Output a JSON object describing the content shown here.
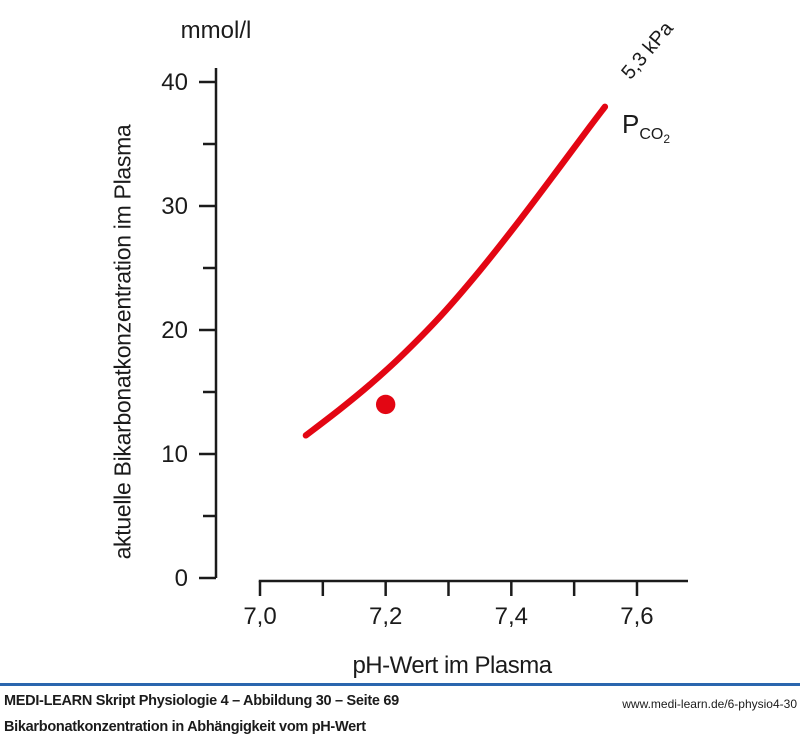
{
  "figure": {
    "unit_label": "mmol/l",
    "y_axis_label": "aktuelle Bikarbonatkonzentration im Plasma",
    "x_axis_label": "pH-Wert im Plasma",
    "isobar_label": "5,3 kPa",
    "pco2": {
      "base": "P",
      "sub": "CO",
      "subsub": "2"
    }
  },
  "chart_data": {
    "type": "line",
    "title": "",
    "xlabel": "pH-Wert im Plasma",
    "ylabel": "aktuelle Bikarbonatkonzentration im Plasma (mmol/l)",
    "xlim": [
      6.93,
      7.68
    ],
    "ylim": [
      0,
      41
    ],
    "grid": false,
    "legend": "curve labeled in-plot as PCO2 = 5,3 kPa",
    "x_major_ticks": [
      {
        "value": 7.0,
        "label": "7,0"
      },
      {
        "value": 7.2,
        "label": "7,2"
      },
      {
        "value": 7.4,
        "label": "7,4"
      },
      {
        "value": 7.6,
        "label": "7,6"
      }
    ],
    "x_minor_ticks": [
      7.1,
      7.3,
      7.5
    ],
    "y_major_ticks": [
      {
        "value": 0,
        "label": "0"
      },
      {
        "value": 10,
        "label": "10"
      },
      {
        "value": 20,
        "label": "20"
      },
      {
        "value": 30,
        "label": "30"
      },
      {
        "value": 40,
        "label": "40"
      }
    ],
    "y_minor_ticks": [
      5,
      15,
      25,
      35
    ],
    "series": [
      {
        "name": "PCO2 = 5,3 kPa Isobare",
        "color": "#e30613",
        "stroke_width": 6.3,
        "points": [
          [
            7.073,
            11.5
          ],
          [
            7.127,
            13.6
          ],
          [
            7.175,
            15.6
          ],
          [
            7.223,
            17.8
          ],
          [
            7.287,
            21.1
          ],
          [
            7.35,
            24.8
          ],
          [
            7.414,
            28.9
          ],
          [
            7.478,
            33.2
          ],
          [
            7.525,
            36.4
          ],
          [
            7.549,
            38.0
          ]
        ]
      }
    ],
    "marker": {
      "x": 7.2,
      "y": 14,
      "color": "#e30613",
      "radius_px": 9.7
    }
  },
  "footer": {
    "source_line": "MEDI-LEARN Skript Physiologie 4 – Abbildung 30 – Seite 69",
    "url": "www.medi-learn.de/6-physio4-30",
    "caption": "Bikarbonatkonzentration in Abhängigkeit vom pH-Wert"
  },
  "colors": {
    "ink": "#1b1b1b",
    "accent_red": "#e30613",
    "rule_blue": "#2a66ae",
    "background": "#ffffff"
  }
}
